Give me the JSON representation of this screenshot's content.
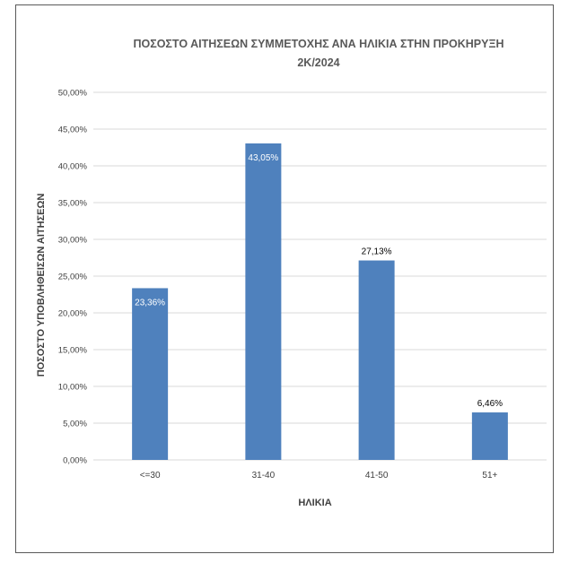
{
  "chart_data": {
    "type": "bar",
    "title_lines": [
      "ΠΟΣΟΣΤΟ ΑΙΤΗΣΕΩΝ ΣΥΜΜΕΤΟΧΗΣ ΑΝΑ ΗΛΙΚΙΑ ΣΤΗΝ ΠΡΟΚΗΡΥΞΗ",
      "2Κ/2024"
    ],
    "xlabel": "ΗΛΙΚΙΑ",
    "ylabel": "ΠΟΣΟΣΤΟ ΥΠΟΒΛΗΘΕΙΣΩΝ ΑΙΤΗΣΕΩΝ",
    "categories": [
      "<=30",
      "31-40",
      "41-50",
      "51+"
    ],
    "values": [
      23.36,
      43.05,
      27.13,
      6.46
    ],
    "data_labels": [
      "23,36%",
      "43,05%",
      "27,13%",
      "6,46%"
    ],
    "data_label_position": [
      "inside-top",
      "inside-top",
      "above",
      "above"
    ],
    "ylim": [
      0,
      50
    ],
    "yticks": [
      0,
      5,
      10,
      15,
      20,
      25,
      30,
      35,
      40,
      45,
      50
    ],
    "ytick_labels": [
      "0,00%",
      "5,00%",
      "10,00%",
      "15,00%",
      "20,00%",
      "25,00%",
      "30,00%",
      "35,00%",
      "40,00%",
      "45,00%",
      "50,00%"
    ],
    "grid": true,
    "legend": "none",
    "colors": {
      "bar": "#4f81bd",
      "grid": "#d9d9d9",
      "label_inside": "#ffffff",
      "label_outside": "#000000",
      "text": "#404040"
    }
  }
}
